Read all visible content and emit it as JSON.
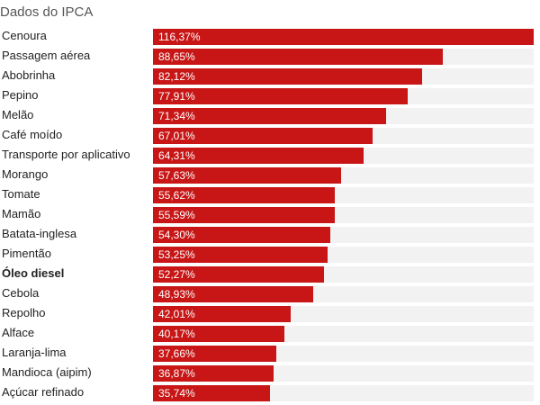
{
  "chart_data": {
    "type": "bar",
    "orientation": "horizontal",
    "title": "Dados do IPCA",
    "xlim": [
      0,
      116.37
    ],
    "bar_color": "#c81616",
    "track_color": "#f2f2f2",
    "categories": [
      "Cenoura",
      "Passagem aérea",
      "Abobrinha",
      "Pepino",
      "Melão",
      "Café moído",
      "Transporte por aplicativo",
      "Morango",
      "Tomate",
      "Mamão",
      "Batata-inglesa",
      "Pimentão",
      "Óleo diesel",
      "Cebola",
      "Repolho",
      "Alface",
      "Laranja-lima",
      "Mandioca (aipim)",
      "Açúcar refinado"
    ],
    "values": [
      116.37,
      88.65,
      82.12,
      77.91,
      71.34,
      67.01,
      64.31,
      57.63,
      55.62,
      55.59,
      54.3,
      53.25,
      52.27,
      48.93,
      42.01,
      40.17,
      37.66,
      36.87,
      35.74
    ],
    "value_labels": [
      "116,37%",
      "88,65%",
      "82,12%",
      "77,91%",
      "71,34%",
      "67,01%",
      "64,31%",
      "57,63%",
      "55,62%",
      "55,59%",
      "54,30%",
      "53,25%",
      "52,27%",
      "48,93%",
      "42,01%",
      "40,17%",
      "37,66%",
      "36,87%",
      "35,74%"
    ],
    "highlighted": [
      "Óleo diesel"
    ]
  }
}
